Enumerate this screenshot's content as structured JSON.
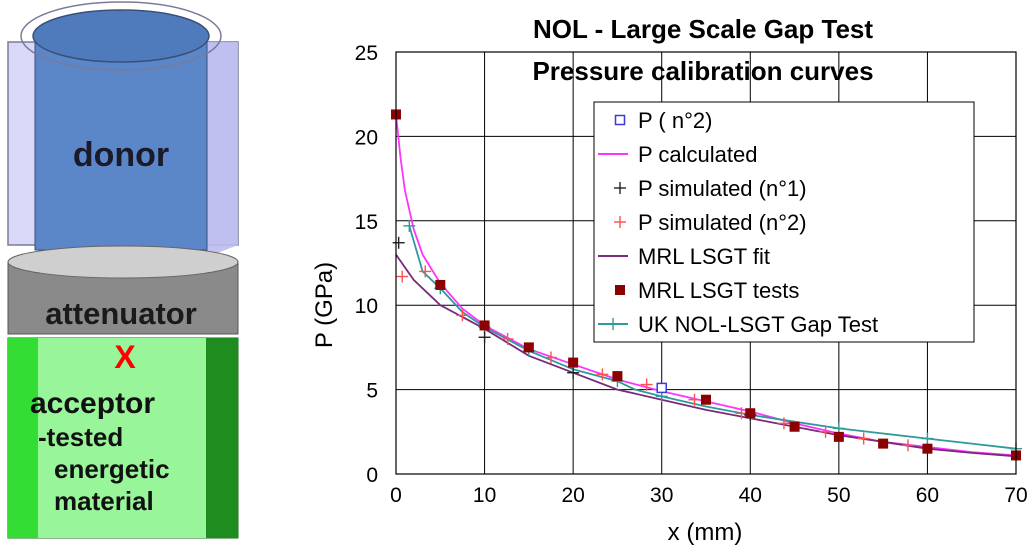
{
  "diagram": {
    "donor_label": "donor",
    "attenuator_label": "attenuator",
    "marker_label": "X",
    "acceptor_lines": [
      "acceptor",
      "-tested",
      "energetic",
      "material"
    ],
    "colors": {
      "donor_body": "#5b86c8",
      "donor_top": "#4f7bbd",
      "donor_sleeve": "#d8d8f8",
      "attenuator": "#8a8a8a",
      "attenuator_top": "#cfcfcf",
      "acceptor": "#33dd33",
      "acceptor_dark": "#1f8c1f",
      "acceptor_light": "#99f599",
      "marker": "#ff0000"
    }
  },
  "chart_data": {
    "type": "line",
    "title": "NOL - Large Scale Gap Test",
    "subtitle": "Pressure calibration curves",
    "xlabel": "x (mm)",
    "ylabel": "P (GPa)",
    "xlim": [
      0,
      70
    ],
    "ylim": [
      0,
      25
    ],
    "xticks": [
      0,
      10,
      20,
      30,
      40,
      50,
      60,
      70
    ],
    "yticks": [
      0,
      5,
      10,
      15,
      20,
      25
    ],
    "grid": true,
    "legend_position": "top-right",
    "series": [
      {
        "name": "P ( n°2)",
        "kind": "marker",
        "marker": "open-square",
        "color": "#3b3bd6",
        "x": [
          30
        ],
        "y": [
          5.1
        ]
      },
      {
        "name": "P calculated",
        "kind": "line",
        "color": "#ff33ff",
        "x": [
          0,
          0.5,
          1,
          2,
          3,
          5,
          7.5,
          10,
          15,
          20,
          25,
          30,
          35,
          40,
          45,
          50,
          55,
          60,
          65,
          70
        ],
        "y": [
          21.3,
          18.8,
          16.8,
          14.5,
          13.0,
          11.3,
          9.8,
          8.8,
          7.4,
          6.5,
          5.6,
          4.9,
          4.3,
          3.7,
          3.0,
          2.4,
          1.9,
          1.6,
          1.3,
          1.1
        ]
      },
      {
        "name": "P simulated (n°1)",
        "kind": "marker",
        "marker": "plus",
        "color": "#222222",
        "x": [
          0.3,
          10,
          20,
          40
        ],
        "y": [
          13.7,
          8.1,
          6.0,
          3.5
        ]
      },
      {
        "name": "P simulated (n°2)",
        "kind": "marker",
        "marker": "plus",
        "color": "#ff5050",
        "x": [
          0.7,
          3.3,
          7.5,
          12.6,
          17.5,
          23.3,
          28.3,
          33.7,
          39,
          43.8,
          48.5,
          52.8,
          57.8
        ],
        "y": [
          11.7,
          12.0,
          9.4,
          8.0,
          6.9,
          5.9,
          5.3,
          4.4,
          3.6,
          3.0,
          2.5,
          2.1,
          1.7
        ]
      },
      {
        "name": "MRL LSGT fit",
        "kind": "line",
        "color": "#7a2a7a",
        "x": [
          0,
          2,
          5,
          10,
          15,
          20,
          25,
          30,
          35,
          40,
          45,
          50,
          55,
          60,
          65,
          70
        ],
        "y": [
          13.0,
          11.5,
          10.0,
          8.6,
          7.0,
          6.0,
          5.0,
          4.4,
          3.8,
          3.3,
          2.8,
          2.3,
          1.9,
          1.5,
          1.25,
          1.05
        ]
      },
      {
        "name": "MRL LSGT tests",
        "kind": "marker",
        "marker": "filled-square",
        "color": "#8b0000",
        "x": [
          0,
          5,
          10,
          15,
          20,
          25,
          35,
          40,
          45,
          50,
          55,
          60,
          70
        ],
        "y": [
          21.3,
          11.2,
          8.8,
          7.5,
          6.6,
          5.8,
          4.4,
          3.6,
          2.8,
          2.2,
          1.8,
          1.5,
          1.1
        ]
      },
      {
        "name": "UK NOL-LSGT Gap Test",
        "kind": "line-plus",
        "color": "#2f9a9a",
        "x": [
          1.5,
          3,
          5,
          7.5,
          10,
          12.5,
          15,
          20,
          25,
          27,
          30,
          35,
          40,
          45,
          50,
          55,
          60,
          65,
          70
        ],
        "y": [
          14.7,
          12.0,
          11.0,
          9.6,
          8.7,
          8.0,
          7.3,
          6.2,
          5.5,
          5.0,
          4.6,
          4.0,
          3.5,
          3.1,
          2.7,
          2.4,
          2.1,
          1.8,
          1.5
        ]
      }
    ]
  }
}
